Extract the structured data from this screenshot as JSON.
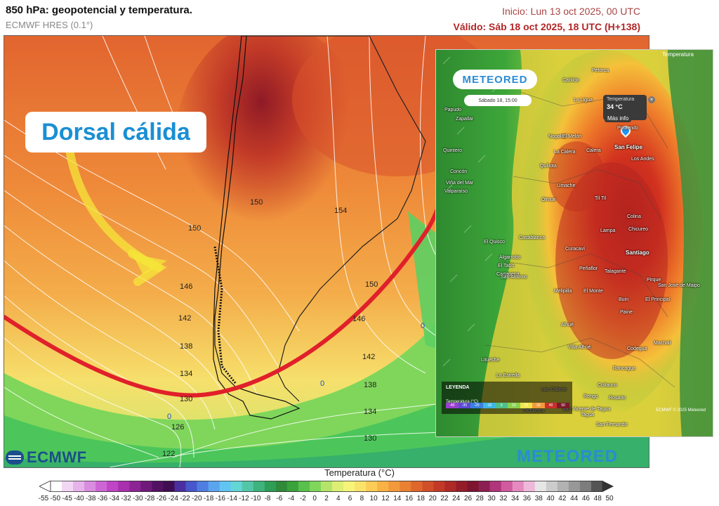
{
  "header": {
    "title": "850 hPa: geopotencial y temperatura.",
    "model": "ECMWF HRES (0.1°)",
    "init": "Inicio: Lun 13 oct 2025, 00 UTC",
    "valid": "Válido: Sáb 18 oct 2025, 18 UTC (H+138)"
  },
  "callout": {
    "text": "Dorsal cálida"
  },
  "isolines": [
    "150",
    "154",
    "150",
    "146",
    "142",
    "138",
    "134",
    "130",
    "126",
    "122",
    "146",
    "150",
    "142",
    "138",
    "134",
    "130",
    "0",
    "0",
    "0"
  ],
  "inset": {
    "logo": "METEORED",
    "date": "Sábado 18, 15:00",
    "layer": "Temperatura",
    "popup_label": "Temperatura",
    "popup_value": "34 °C",
    "more_info": "Más info",
    "legend_title": "LEYENDA",
    "legend_sub": "Temperatura (°C)",
    "legend_values": [
      "-40",
      "-30",
      "-20",
      "-10",
      "0",
      "10",
      "20",
      "30",
      "40",
      "50"
    ],
    "credit": "ECMWF © 2025 Meteored",
    "cities": [
      "Petorca",
      "Cabildo",
      "La Ligua",
      "Papudo",
      "Zapallar",
      "Putaendo",
      "San Felipe",
      "Los Andes",
      "Nogales",
      "La Calera",
      "Quillota",
      "El Melón",
      "Calera",
      "Quintero",
      "Concón",
      "Viña del Mar",
      "Valparaíso",
      "Limache",
      "Olmué",
      "Til Til",
      "Colina",
      "Lampa",
      "Chicureo",
      "Santiago",
      "Curacaví",
      "Casablanca",
      "El Quisco",
      "Algarrobo",
      "El Tabo",
      "Cartagena",
      "San Antonio",
      "Melipilla",
      "El Monte",
      "Talagante",
      "Peñaflor",
      "Buin",
      "Paine",
      "Pirque",
      "El Principal",
      "San José de Maipo",
      "Alhué",
      "Villa Alhué",
      "Litueche",
      "La Estrella",
      "Rancagua",
      "Codegua",
      "Machalí",
      "Coltauco",
      "Rosario",
      "Las Cabras",
      "Rengo",
      "San Vicente de Tagua",
      "Pichilemu",
      "San Fernando",
      "Tagua"
    ],
    "cities_big": [
      "San Felipe",
      "Santiago"
    ]
  },
  "logos": {
    "ecmwf": "ECMWF",
    "meteored": "METEORED"
  },
  "colorbar": {
    "title": "Temperatura (°C)",
    "ticks": [
      "-55",
      "-50",
      "-45",
      "-40",
      "-38",
      "-36",
      "-34",
      "-32",
      "-30",
      "-28",
      "-26",
      "-24",
      "-22",
      "-20",
      "-18",
      "-16",
      "-14",
      "-12",
      "-10",
      "-8",
      "-6",
      "-4",
      "-2",
      "0",
      "2",
      "4",
      "6",
      "8",
      "10",
      "12",
      "14",
      "16",
      "18",
      "20",
      "22",
      "24",
      "26",
      "28",
      "30",
      "32",
      "34",
      "36",
      "38",
      "40",
      "42",
      "44",
      "46",
      "48",
      "50"
    ],
    "colors": [
      "#ffffff",
      "#f2d7f4",
      "#e6b3ea",
      "#d98ddf",
      "#cd66d4",
      "#bf44c6",
      "#a82fae",
      "#8c2495",
      "#6f1a7a",
      "#531261",
      "#3f0d52",
      "#4b2fa0",
      "#4857cc",
      "#4f7ee0",
      "#5aa5ee",
      "#62c4f2",
      "#63d6d6",
      "#54c6a8",
      "#3eb37e",
      "#2e9e57",
      "#2f8b39",
      "#3aa23a",
      "#58c04b",
      "#80d65b",
      "#b4e46a",
      "#dcef74",
      "#f6f57a",
      "#fbe36b",
      "#fbcc56",
      "#f8b245",
      "#f29a3b",
      "#ea8032",
      "#df672b",
      "#d14f28",
      "#c23a27",
      "#ad2a27",
      "#951d2a",
      "#7d1530",
      "#8c1f52",
      "#b0357a",
      "#d05a9f",
      "#e48ac0",
      "#eeb8da",
      "#e6e6e6",
      "#cccccc",
      "#b2b2b2",
      "#989898",
      "#7d7d7d",
      "#555555"
    ]
  }
}
